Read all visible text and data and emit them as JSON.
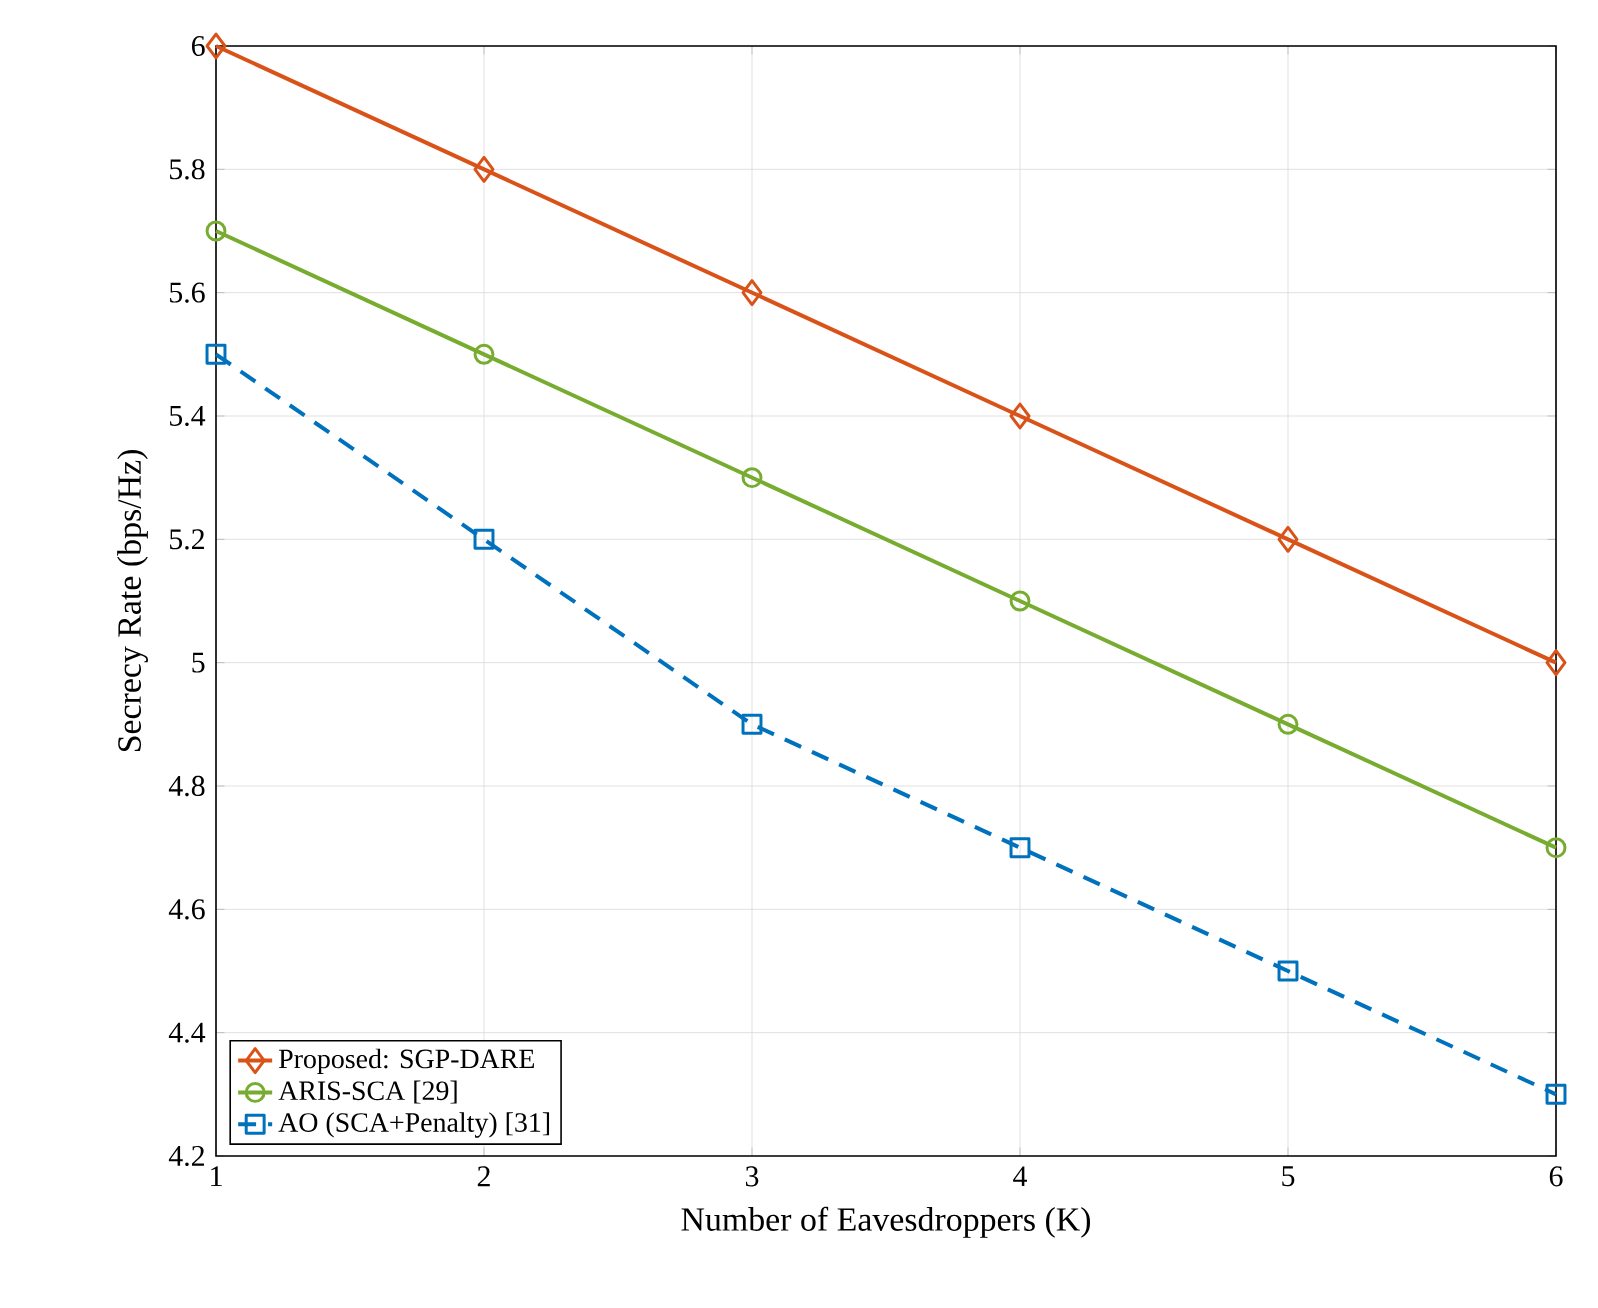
{
  "chart_data": {
    "type": "line",
    "xlabel": "Number of Eavesdroppers (K)",
    "ylabel": "Secrecy Rate (bps/Hz)",
    "x": [
      1,
      2,
      3,
      4,
      5,
      6
    ],
    "series": [
      {
        "name": "Proposed: SGP-DARE",
        "color": "#d95319",
        "marker": "diamond",
        "line_style": "solid",
        "values": [
          6.0,
          5.8,
          5.6,
          5.4,
          5.2,
          5.0
        ]
      },
      {
        "name": "ARIS-SCA [29]",
        "color": "#77ac30",
        "marker": "circle",
        "line_style": "solid",
        "values": [
          5.7,
          5.5,
          5.3,
          5.1,
          4.9,
          4.7
        ]
      },
      {
        "name": "AO (SCA+Penalty) [31]",
        "color": "#0072bd",
        "marker": "square",
        "line_style": "dashed",
        "values": [
          5.5,
          5.2,
          4.9,
          4.7,
          4.5,
          4.3
        ]
      }
    ],
    "xlim": [
      1,
      6
    ],
    "ylim": [
      4.2,
      6
    ],
    "xticks": [
      1,
      2,
      3,
      4,
      5,
      6
    ],
    "yticks": [
      4.2,
      4.4,
      4.6,
      4.8,
      5,
      5.2,
      5.4,
      5.6,
      5.8,
      6
    ],
    "grid": true,
    "legend": "bottom left"
  }
}
